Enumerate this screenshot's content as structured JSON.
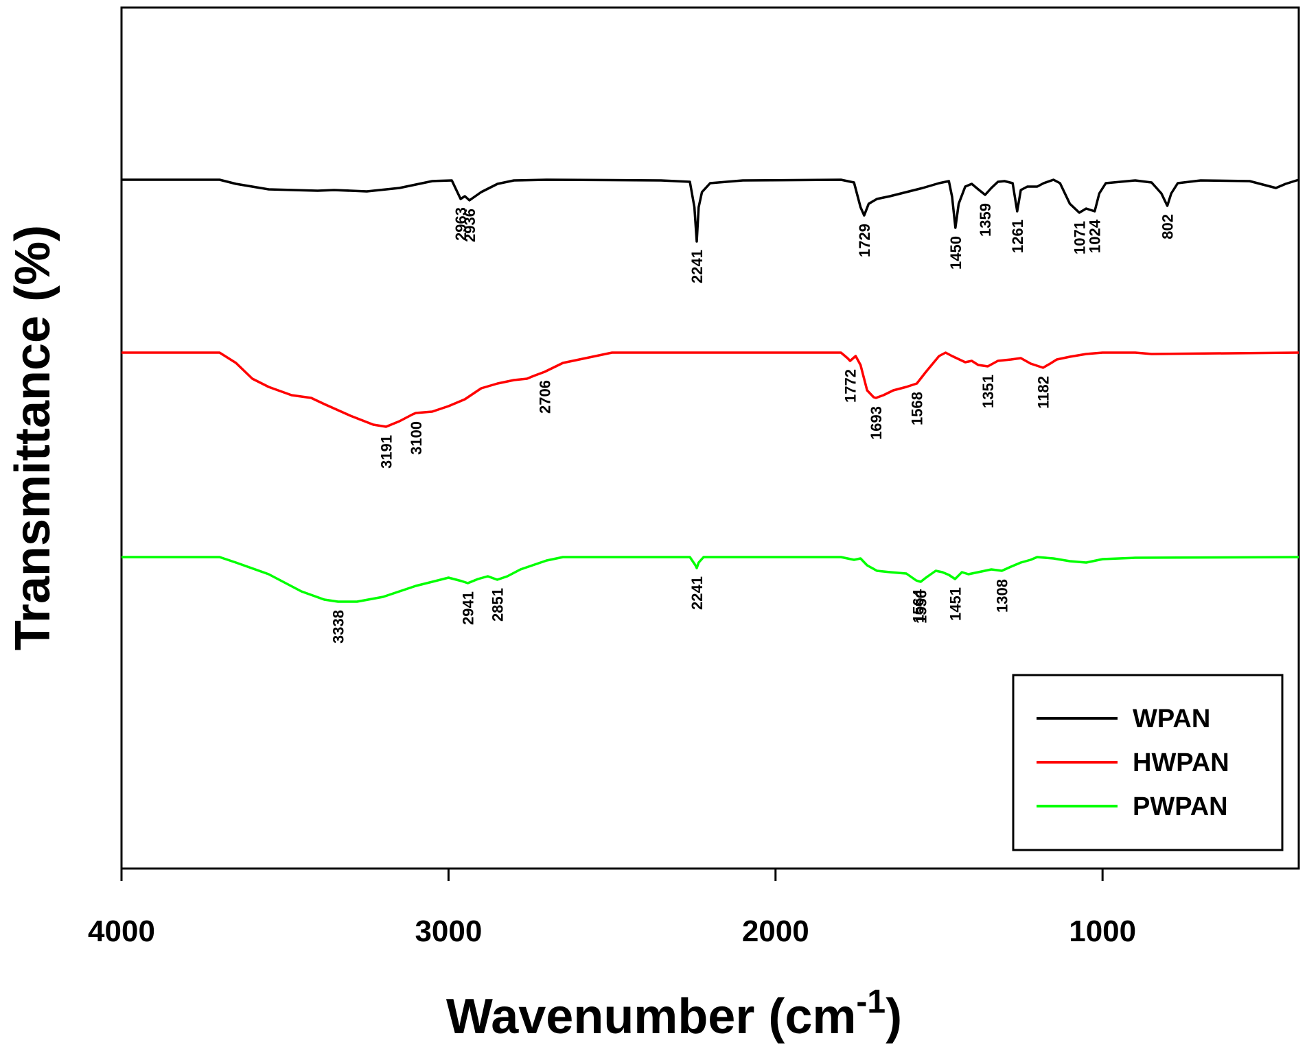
{
  "chart_data": {
    "type": "line",
    "title": "",
    "xlabel": "Wavenumber (cm",
    "xlabel_sup": "-1",
    "xlabel_close": ")",
    "ylabel": "Transmittance (%)",
    "xlim": [
      4000,
      400
    ],
    "x_ticks": [
      4000,
      3000,
      2000,
      1000
    ],
    "legend_position": "bottom-right",
    "series": [
      {
        "name": "WPAN",
        "color": "#000000",
        "baseline": 0,
        "points": [
          [
            4000,
            0
          ],
          [
            3700,
            0
          ],
          [
            3650,
            -6
          ],
          [
            3550,
            -14
          ],
          [
            3400,
            -16
          ],
          [
            3350,
            -15
          ],
          [
            3250,
            -17
          ],
          [
            3150,
            -12
          ],
          [
            3050,
            -2
          ],
          [
            2990,
            -1
          ],
          [
            2963,
            -28
          ],
          [
            2950,
            -24
          ],
          [
            2936,
            -30
          ],
          [
            2900,
            -18
          ],
          [
            2850,
            -6
          ],
          [
            2800,
            -1
          ],
          [
            2700,
            0
          ],
          [
            2350,
            -1
          ],
          [
            2262,
            -3
          ],
          [
            2248,
            -40
          ],
          [
            2241,
            -90
          ],
          [
            2235,
            -40
          ],
          [
            2225,
            -18
          ],
          [
            2200,
            -5
          ],
          [
            2100,
            -1
          ],
          [
            1800,
            0
          ],
          [
            1760,
            -4
          ],
          [
            1740,
            -40
          ],
          [
            1729,
            -52
          ],
          [
            1715,
            -35
          ],
          [
            1690,
            -28
          ],
          [
            1650,
            -24
          ],
          [
            1600,
            -18
          ],
          [
            1550,
            -12
          ],
          [
            1500,
            -5
          ],
          [
            1470,
            -2
          ],
          [
            1460,
            -25
          ],
          [
            1450,
            -70
          ],
          [
            1440,
            -35
          ],
          [
            1420,
            -10
          ],
          [
            1400,
            -6
          ],
          [
            1380,
            -14
          ],
          [
            1359,
            -22
          ],
          [
            1340,
            -12
          ],
          [
            1320,
            -3
          ],
          [
            1300,
            -2
          ],
          [
            1275,
            -5
          ],
          [
            1261,
            -46
          ],
          [
            1250,
            -15
          ],
          [
            1230,
            -10
          ],
          [
            1200,
            -10
          ],
          [
            1180,
            -5
          ],
          [
            1150,
            0
          ],
          [
            1130,
            -5
          ],
          [
            1100,
            -35
          ],
          [
            1071,
            -48
          ],
          [
            1050,
            -42
          ],
          [
            1024,
            -46
          ],
          [
            1010,
            -20
          ],
          [
            990,
            -5
          ],
          [
            900,
            -1
          ],
          [
            850,
            -4
          ],
          [
            820,
            -20
          ],
          [
            802,
            -38
          ],
          [
            790,
            -20
          ],
          [
            770,
            -5
          ],
          [
            700,
            -1
          ],
          [
            550,
            -2
          ],
          [
            470,
            -12
          ],
          [
            440,
            -6
          ],
          [
            400,
            0
          ]
        ]
      },
      {
        "name": "HWPAN",
        "color": "#ff0000",
        "baseline": 0,
        "points": [
          [
            4000,
            0
          ],
          [
            3700,
            0
          ],
          [
            3650,
            -15
          ],
          [
            3600,
            -38
          ],
          [
            3550,
            -50
          ],
          [
            3480,
            -62
          ],
          [
            3420,
            -66
          ],
          [
            3380,
            -75
          ],
          [
            3300,
            -92
          ],
          [
            3230,
            -105
          ],
          [
            3191,
            -108
          ],
          [
            3150,
            -100
          ],
          [
            3110,
            -90
          ],
          [
            3100,
            -88
          ],
          [
            3050,
            -86
          ],
          [
            3000,
            -78
          ],
          [
            2950,
            -68
          ],
          [
            2900,
            -52
          ],
          [
            2850,
            -45
          ],
          [
            2800,
            -40
          ],
          [
            2760,
            -38
          ],
          [
            2740,
            -34
          ],
          [
            2706,
            -28
          ],
          [
            2650,
            -15
          ],
          [
            2600,
            -10
          ],
          [
            2500,
            0
          ],
          [
            1800,
            0
          ],
          [
            1780,
            -8
          ],
          [
            1772,
            -12
          ],
          [
            1755,
            -5
          ],
          [
            1740,
            -18
          ],
          [
            1720,
            -55
          ],
          [
            1700,
            -65
          ],
          [
            1693,
            -66
          ],
          [
            1670,
            -62
          ],
          [
            1640,
            -55
          ],
          [
            1600,
            -50
          ],
          [
            1568,
            -45
          ],
          [
            1540,
            -28
          ],
          [
            1500,
            -5
          ],
          [
            1480,
            0
          ],
          [
            1460,
            -5
          ],
          [
            1420,
            -14
          ],
          [
            1400,
            -12
          ],
          [
            1380,
            -18
          ],
          [
            1351,
            -20
          ],
          [
            1320,
            -12
          ],
          [
            1280,
            -10
          ],
          [
            1250,
            -8
          ],
          [
            1220,
            -16
          ],
          [
            1182,
            -22
          ],
          [
            1160,
            -16
          ],
          [
            1140,
            -10
          ],
          [
            1100,
            -6
          ],
          [
            1050,
            -2
          ],
          [
            1000,
            0
          ],
          [
            900,
            0
          ],
          [
            850,
            -2
          ],
          [
            400,
            0
          ]
        ]
      },
      {
        "name": "PWPAN",
        "color": "#00ff00",
        "baseline": 0,
        "points": [
          [
            4000,
            0
          ],
          [
            3700,
            0
          ],
          [
            3650,
            -8
          ],
          [
            3550,
            -25
          ],
          [
            3450,
            -50
          ],
          [
            3380,
            -62
          ],
          [
            3338,
            -65
          ],
          [
            3280,
            -65
          ],
          [
            3200,
            -58
          ],
          [
            3100,
            -42
          ],
          [
            3000,
            -30
          ],
          [
            2960,
            -35
          ],
          [
            2941,
            -38
          ],
          [
            2910,
            -32
          ],
          [
            2880,
            -28
          ],
          [
            2851,
            -33
          ],
          [
            2820,
            -28
          ],
          [
            2780,
            -18
          ],
          [
            2700,
            -5
          ],
          [
            2650,
            0
          ],
          [
            2262,
            0
          ],
          [
            2245,
            -12
          ],
          [
            2241,
            -16
          ],
          [
            2235,
            -8
          ],
          [
            2220,
            0
          ],
          [
            1800,
            0
          ],
          [
            1760,
            -4
          ],
          [
            1740,
            -2
          ],
          [
            1720,
            -12
          ],
          [
            1690,
            -20
          ],
          [
            1650,
            -22
          ],
          [
            1600,
            -24
          ],
          [
            1570,
            -34
          ],
          [
            1564,
            -35
          ],
          [
            1556,
            -36
          ],
          [
            1540,
            -30
          ],
          [
            1510,
            -20
          ],
          [
            1490,
            -22
          ],
          [
            1470,
            -26
          ],
          [
            1451,
            -32
          ],
          [
            1430,
            -22
          ],
          [
            1410,
            -25
          ],
          [
            1380,
            -22
          ],
          [
            1340,
            -18
          ],
          [
            1308,
            -20
          ],
          [
            1280,
            -14
          ],
          [
            1250,
            -8
          ],
          [
            1220,
            -4
          ],
          [
            1200,
            0
          ],
          [
            1150,
            -2
          ],
          [
            1100,
            -6
          ],
          [
            1050,
            -8
          ],
          [
            1000,
            -3
          ],
          [
            900,
            -1
          ],
          [
            400,
            0
          ]
        ]
      }
    ],
    "annotations": [
      {
        "series": "WPAN",
        "labels": [
          "2963",
          "2936",
          "2241",
          "1729",
          "1450",
          "1359",
          "1261",
          "1071",
          "1024",
          "802"
        ]
      },
      {
        "series": "HWPAN",
        "labels": [
          "3191",
          "3100",
          "2706",
          "1772",
          "1693",
          "1568",
          "1351",
          "1182"
        ]
      },
      {
        "series": "PWPAN",
        "labels": [
          "3338",
          "2941",
          "2851",
          "2241",
          "1564",
          "1556",
          "1451",
          "1308"
        ]
      }
    ]
  }
}
